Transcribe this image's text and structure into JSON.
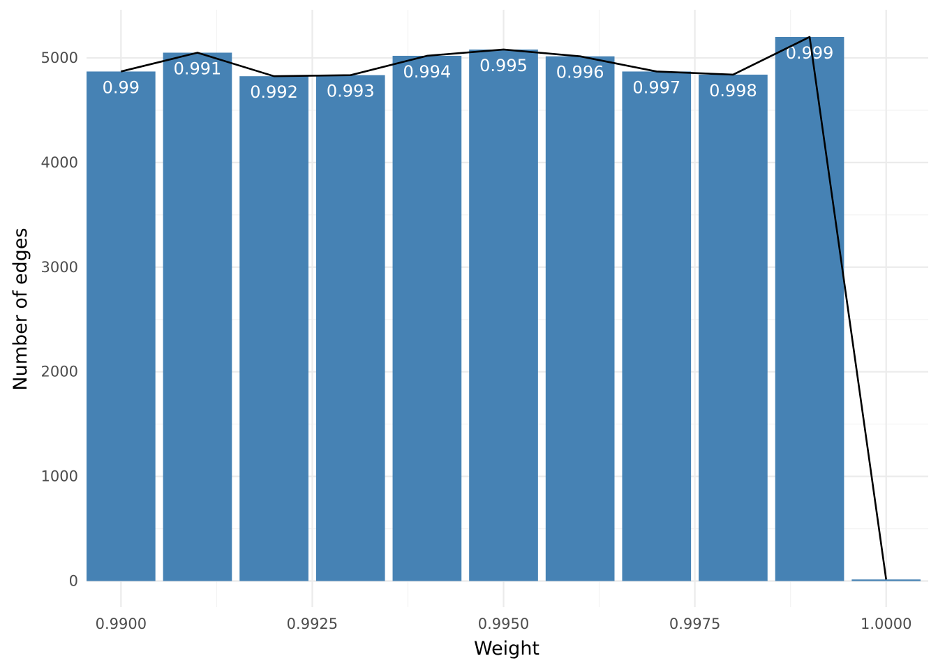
{
  "chart_data": {
    "type": "bar",
    "title": "",
    "xlabel": "Weight",
    "ylabel": "Number of edges",
    "xlim": [
      0.98955,
      1.00055
    ],
    "ylim": [
      -250,
      5460
    ],
    "x_ticks": [
      "0.9900",
      "0.9925",
      "0.9950",
      "0.9975",
      "1.0000"
    ],
    "x_tick_values": [
      0.99,
      0.9925,
      0.995,
      0.9975,
      1.0
    ],
    "y_ticks": [
      "0",
      "1000",
      "2000",
      "3000",
      "4000",
      "5000"
    ],
    "y_tick_values": [
      0,
      1000,
      2000,
      3000,
      4000,
      5000
    ],
    "bar_width": 0.0009,
    "bars": [
      {
        "x": 0.99,
        "value": 4870,
        "label": "0.99"
      },
      {
        "x": 0.991,
        "value": 5050,
        "label": "0.991"
      },
      {
        "x": 0.992,
        "value": 4825,
        "label": "0.992"
      },
      {
        "x": 0.993,
        "value": 4835,
        "label": "0.993"
      },
      {
        "x": 0.994,
        "value": 5020,
        "label": "0.994"
      },
      {
        "x": 0.995,
        "value": 5080,
        "label": "0.995"
      },
      {
        "x": 0.996,
        "value": 5015,
        "label": "0.996"
      },
      {
        "x": 0.997,
        "value": 4870,
        "label": "0.997"
      },
      {
        "x": 0.998,
        "value": 4840,
        "label": "0.998"
      },
      {
        "x": 0.999,
        "value": 5200,
        "label": "0.999"
      },
      {
        "x": 1.0,
        "value": 15,
        "label": ""
      }
    ],
    "line": {
      "x": [
        0.99,
        0.991,
        0.992,
        0.993,
        0.994,
        0.995,
        0.996,
        0.997,
        0.998,
        0.999,
        1.0
      ],
      "y": [
        4870,
        5050,
        4825,
        4835,
        5020,
        5080,
        5015,
        4870,
        4840,
        5200,
        15
      ]
    },
    "grid": true,
    "legend": "none",
    "colors": {
      "bar": "#4682b4",
      "line": "#000000",
      "grid_major": "#ebebeb",
      "grid_minor": "#f4f4f4"
    }
  }
}
